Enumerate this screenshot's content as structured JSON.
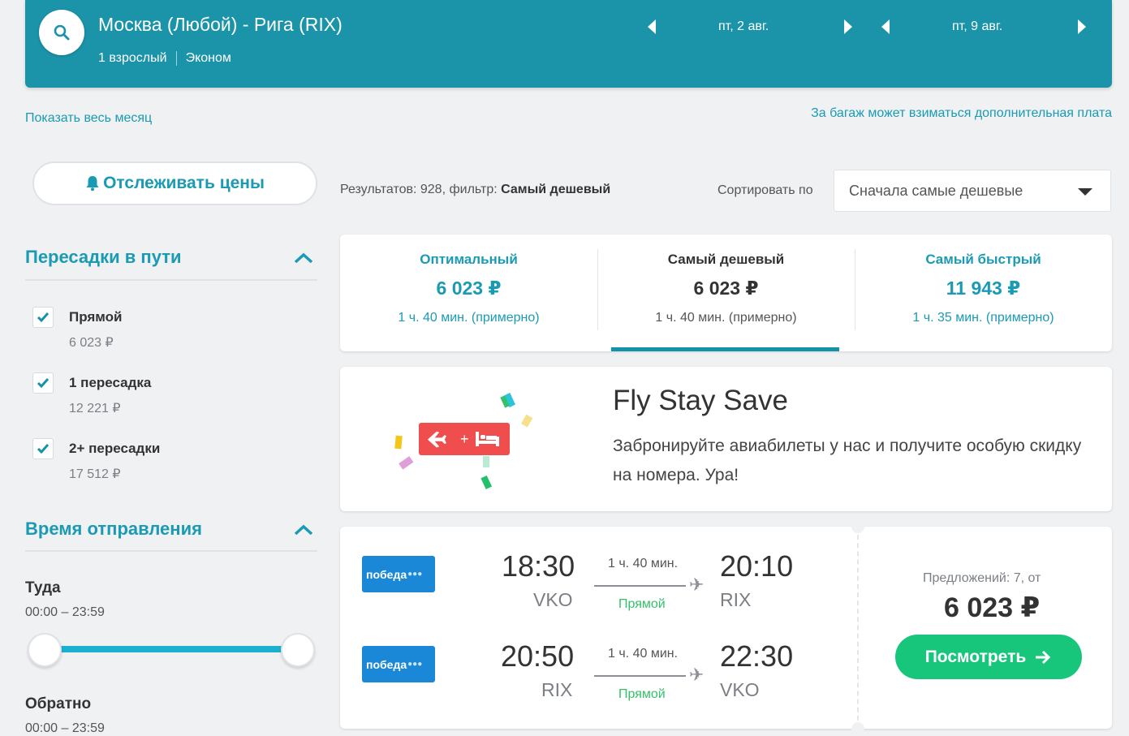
{
  "header": {
    "route": "Москва (Любой) - Рига (RIX)",
    "passengers": "1 взрослый",
    "cabin": "Эконом",
    "depart_date": "пт, 2 авг.",
    "return_date": "пт, 9 авг."
  },
  "links": {
    "show_month": "Показать весь месяц",
    "baggage": "За багаж может взиматься дополнительная плата"
  },
  "sidebar": {
    "track_prices": "Отслеживать цены",
    "stops_title": "Пересадки в пути",
    "stops": [
      {
        "label": "Прямой",
        "price": "6 023 ₽",
        "checked": true
      },
      {
        "label": "1 пересадка",
        "price": "12 221 ₽",
        "checked": true
      },
      {
        "label": "2+ пересадки",
        "price": "17 512 ₽",
        "checked": true
      }
    ],
    "departure_title": "Время отправления",
    "outbound_label": "Туда",
    "outbound_range": "00:00 – 23:59",
    "return_label": "Обратно",
    "return_range": "00:00 – 23:59"
  },
  "results": {
    "count_text": "Результатов: 928, фильтр: ",
    "filter_name": "Самый дешевый",
    "sort_label": "Сортировать по",
    "sort_value": "Сначала самые дешевые"
  },
  "tabs": [
    {
      "title": "Оптимальный",
      "price": "6 023 ₽",
      "duration": "1 ч. 40 мин. (примерно)"
    },
    {
      "title": "Самый дешевый",
      "price": "6 023 ₽",
      "duration": "1 ч. 40 мин. (примерно)"
    },
    {
      "title": "Самый быстрый",
      "price": "11 943 ₽",
      "duration": "1 ч. 35 мин. (примерно)"
    }
  ],
  "promo": {
    "title": "Fly Stay Save",
    "text": "Забронируйте авиабилеты у нас и получите особую скидку на номера. Ура!"
  },
  "flight": {
    "airline": "победа",
    "legs": [
      {
        "dep_time": "18:30",
        "dep_code": "VKO",
        "duration": "1 ч. 40 мин.",
        "stops": "Прямой",
        "arr_time": "20:10",
        "arr_code": "RIX"
      },
      {
        "dep_time": "20:50",
        "dep_code": "RIX",
        "duration": "1 ч. 40 мин.",
        "stops": "Прямой",
        "arr_time": "22:30",
        "arr_code": "VKO"
      }
    ],
    "offers": "Предложений: 7, от",
    "price": "6 023 ₽",
    "view_button": "Посмотреть"
  },
  "colors": {
    "header": "#1b93a9",
    "accent": "#1b9ab3",
    "cta": "#17c67b",
    "airline": "#1a88d6"
  }
}
